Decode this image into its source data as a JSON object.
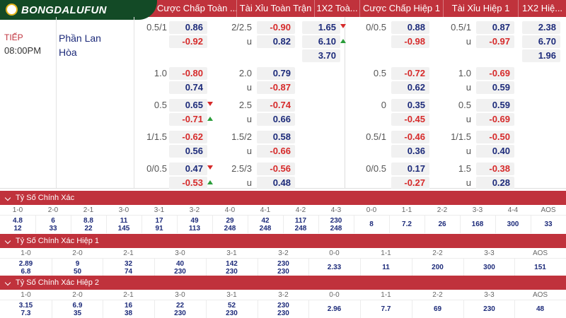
{
  "logo": {
    "text": "BONGDALUFUN"
  },
  "headers": [
    "Cược Chấp Toàn ...",
    "Tài Xỉu Toàn Trận",
    "1X2 Toà...",
    "Cược Chấp Hiệp 1",
    "Tài Xỉu Hiệp 1",
    "1X2 Hiệ..."
  ],
  "match": {
    "status": "TIẾP",
    "time": "08:00PM",
    "team_home": "Phần Lan",
    "draw": "Hòa"
  },
  "ft_rows": [
    {
      "hcap_line": "0.5/1",
      "hcap_home": "0.86",
      "hcap_away": "-0.92",
      "ou_line": "2/2.5",
      "ou_over": "-0.90",
      "ou_under_label": "u",
      "ou_under": "0.82"
    },
    {
      "hcap_line": "1.0",
      "hcap_home": "-0.80",
      "hcap_away": "0.74",
      "ou_line": "2.0",
      "ou_over": "0.79",
      "ou_under_label": "u",
      "ou_under": "-0.87"
    },
    {
      "hcap_line": "0.5",
      "hcap_home": "0.65",
      "hcap_away": "-0.71",
      "ou_line": "2.5",
      "ou_over": "-0.74",
      "ou_under_label": "u",
      "ou_under": "0.66"
    },
    {
      "hcap_line": "1/1.5",
      "hcap_home": "-0.62",
      "hcap_away": "0.56",
      "ou_line": "1.5/2",
      "ou_over": "0.58",
      "ou_under_label": "u",
      "ou_under": "-0.66"
    },
    {
      "hcap_line": "0/0.5",
      "hcap_home": "0.47",
      "hcap_away": "-0.53",
      "ou_line": "2.5/3",
      "ou_over": "-0.56",
      "ou_under_label": "u",
      "ou_under": "0.48"
    }
  ],
  "ft_1x2": [
    "1.65",
    "6.10",
    "3.70"
  ],
  "h1_rows": [
    {
      "hcap_line": "0/0.5",
      "hcap_home": "0.88",
      "hcap_away": "-0.98",
      "ou_line": "0.5/1",
      "ou_over": "0.87",
      "ou_under_label": "u",
      "ou_under": "-0.97"
    },
    {
      "hcap_line": "0.5",
      "hcap_home": "-0.72",
      "hcap_away": "0.62",
      "ou_line": "1.0",
      "ou_over": "-0.69",
      "ou_under_label": "u",
      "ou_under": "0.59"
    },
    {
      "hcap_line": "0",
      "hcap_home": "0.35",
      "hcap_away": "-0.45",
      "ou_line": "0.5",
      "ou_over": "0.59",
      "ou_under_label": "u",
      "ou_under": "-0.69"
    },
    {
      "hcap_line": "0.5/1",
      "hcap_home": "-0.46",
      "hcap_away": "0.36",
      "ou_line": "1/1.5",
      "ou_over": "-0.50",
      "ou_under_label": "u",
      "ou_under": "0.40"
    },
    {
      "hcap_line": "0/0.5",
      "hcap_home": "0.17",
      "hcap_away": "-0.27",
      "ou_line": "1.5",
      "ou_over": "-0.38",
      "ou_under_label": "u",
      "ou_under": "0.28"
    }
  ],
  "h1_1x2": [
    "2.38",
    "6.70",
    "1.96"
  ],
  "correct_score": {
    "title": "Tỷ Số Chính Xác",
    "headers": [
      "1-0",
      "2-0",
      "2-1",
      "3-0",
      "3-1",
      "3-2",
      "4-0",
      "4-1",
      "4-2",
      "4-3",
      "0-0",
      "1-1",
      "2-2",
      "3-3",
      "4-4",
      "AOS"
    ],
    "home": [
      "4.8",
      "6",
      "8.8",
      "11",
      "17",
      "49",
      "29",
      "42",
      "117",
      "230",
      "8",
      "7.2",
      "26",
      "168",
      "300",
      "33"
    ],
    "away": [
      "12",
      "33",
      "22",
      "145",
      "91",
      "113",
      "248",
      "248",
      "248",
      "248",
      "",
      "",
      "",
      "",
      "",
      ""
    ]
  },
  "correct_score_h1": {
    "title": "Tỷ Số Chính Xác Hiệp 1",
    "headers": [
      "1-0",
      "2-0",
      "2-1",
      "3-0",
      "3-1",
      "3-2",
      "0-0",
      "1-1",
      "2-2",
      "3-3",
      "AOS"
    ],
    "home": [
      "2.89",
      "9",
      "32",
      "40",
      "142",
      "230",
      "2.33",
      "11",
      "200",
      "300",
      "151"
    ],
    "away": [
      "6.8",
      "50",
      "74",
      "230",
      "230",
      "230",
      "",
      "",
      "",
      "",
      ""
    ]
  },
  "correct_score_h2": {
    "title": "Tỷ Số Chính Xác Hiệp 2",
    "headers": [
      "1-0",
      "2-0",
      "2-1",
      "3-0",
      "3-1",
      "3-2",
      "0-0",
      "1-1",
      "2-2",
      "3-3",
      "AOS"
    ],
    "home": [
      "3.15",
      "6.9",
      "16",
      "22",
      "52",
      "230",
      "2.96",
      "7.7",
      "69",
      "230",
      "48"
    ],
    "away": [
      "7.3",
      "35",
      "38",
      "230",
      "230",
      "230",
      "",
      "",
      "",
      "",
      ""
    ]
  },
  "colors": {
    "header_red": "#c0323c",
    "logo_green": "#134a26",
    "positive": "#1d2b7a",
    "negative": "#d62a2a",
    "up": "#2a9d3a"
  }
}
